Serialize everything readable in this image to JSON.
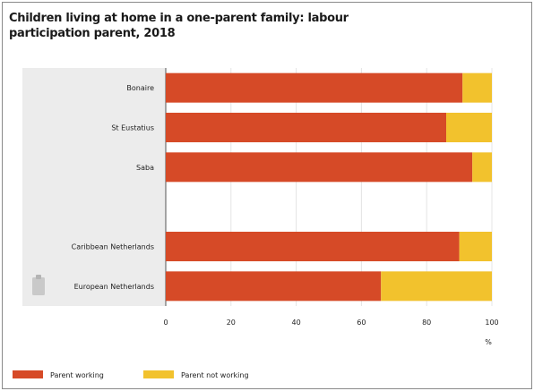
{
  "chart_data": {
    "type": "bar",
    "orientation": "horizontal",
    "stacked": true,
    "title": "Children living at home in a one-parent family: labour participation parent, 2018",
    "categories": [
      "Bonaire",
      "St Eustatius",
      "Saba",
      "",
      "Caribbean Netherlands",
      "European Netherlands"
    ],
    "series": [
      {
        "name": "Parent working",
        "values": [
          91,
          86,
          94,
          null,
          90,
          66
        ],
        "color": "#d64a27"
      },
      {
        "name": "Parent not working",
        "values": [
          9,
          14,
          6,
          null,
          10,
          34
        ],
        "color": "#f2c22d"
      }
    ],
    "xlim": [
      0,
      100
    ],
    "xticks": [
      "0",
      "20",
      "40",
      "60",
      "80",
      "100"
    ],
    "xunit": "%",
    "grid": true,
    "legend": "bottom"
  }
}
